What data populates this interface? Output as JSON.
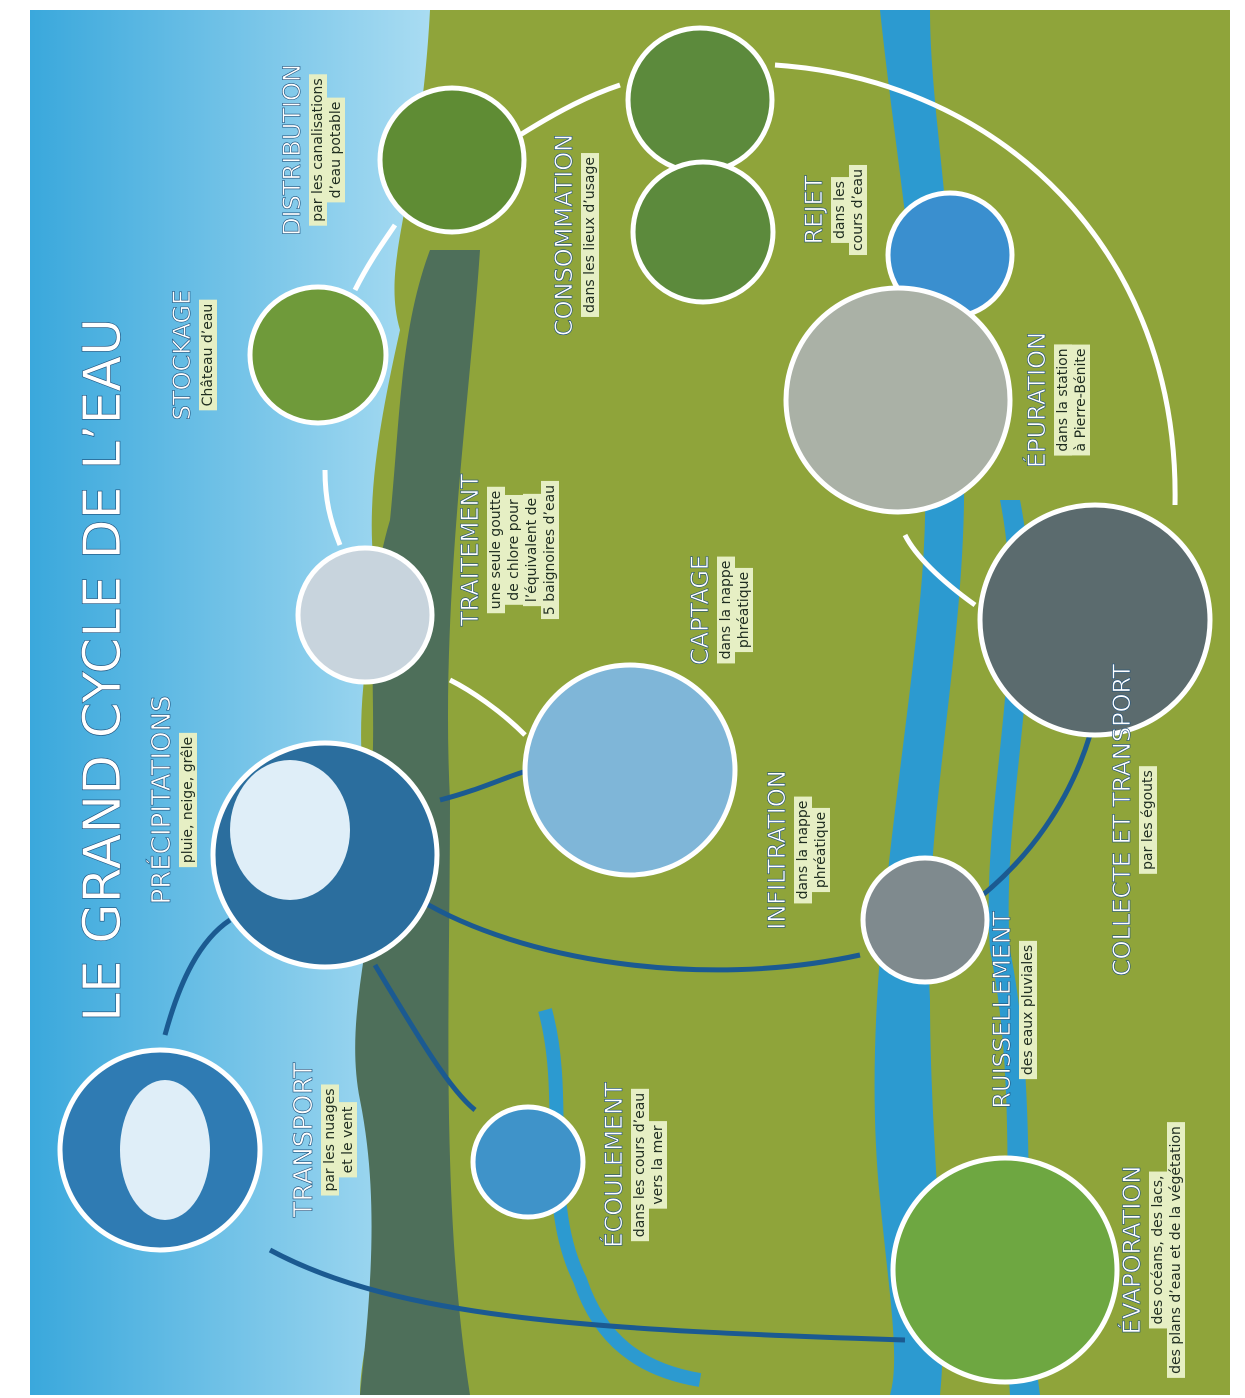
{
  "title": "LE GRAND CYCLE DE L’EAU",
  "stages": [
    {
      "title": "TRANSPORT",
      "lines": [
        "par les nuages",
        "et le vent"
      ]
    },
    {
      "title": "PRÉCIPITATIONS",
      "lines": [
        "pluie, neige, grêle"
      ]
    },
    {
      "title": "ÉCOULEMENT",
      "lines": [
        "dans les cours d’eau",
        "vers la mer"
      ]
    },
    {
      "title": "INFILTRATION",
      "lines": [
        "dans la nappe",
        "phréatique"
      ]
    },
    {
      "title": "CAPTAGE",
      "lines": [
        "dans la nappe",
        "phréatique"
      ]
    },
    {
      "title": "TRAITEMENT",
      "lines": [
        "une seule goutte",
        "de chlore pour",
        "l’équivalent de",
        "5 baignoires d’eau"
      ]
    },
    {
      "title": "STOCKAGE",
      "lines": [
        "Château d’eau"
      ]
    },
    {
      "title": "DISTRIBUTION",
      "lines": [
        "par les canalisations",
        "d’eau potable"
      ]
    },
    {
      "title": "CONSOMMATION",
      "lines": [
        "dans les lieux d’usage"
      ]
    },
    {
      "title": "REJET",
      "lines": [
        "dans les",
        "cours d’eau"
      ]
    },
    {
      "title": "ÉPURATION",
      "lines": [
        "dans la station",
        "à Pierre-Bénite"
      ]
    },
    {
      "title": "COLLECTE ET TRANSPORT",
      "lines": [
        "par les égouts"
      ]
    },
    {
      "title": "RUISSELLEMENT",
      "lines": [
        "des eaux pluviales"
      ]
    },
    {
      "title": "ÉVAPORATION",
      "lines": [
        "des océans, des lacs,",
        "des plans d’eau et de la végétation"
      ]
    }
  ]
}
